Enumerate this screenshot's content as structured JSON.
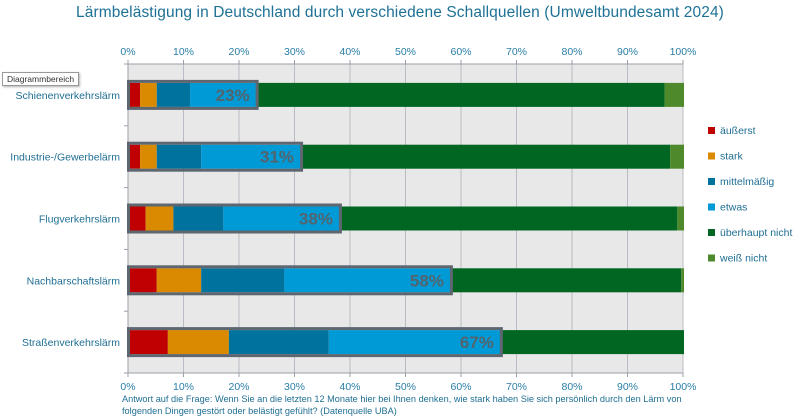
{
  "chart_data": {
    "type": "bar",
    "orientation": "horizontal-stacked-100",
    "title": "Lärmbelästigung in Deutschland durch verschiedene Schallquellen (Umweltbundesamt 2024)",
    "xlabel": "",
    "ylabel": "",
    "xlim": [
      0,
      100
    ],
    "x_ticks": [
      "0%",
      "10%",
      "20%",
      "30%",
      "40%",
      "50%",
      "60%",
      "70%",
      "80%",
      "90%",
      "100%"
    ],
    "grid": true,
    "legend_position": "right",
    "categories": [
      "Schienenverkehrslärm",
      "Industrie-/Gewerbelärm",
      "Flugverkehrslärm",
      "Nachbarschaftslärm",
      "Straßenverkehrslärm"
    ],
    "series": [
      {
        "name": "äußerst",
        "color": "#c00000",
        "values": [
          2,
          2,
          3,
          5,
          7
        ]
      },
      {
        "name": "stark",
        "color": "#d98a00",
        "values": [
          3,
          3,
          5,
          8,
          11
        ]
      },
      {
        "name": "mittelmäßig",
        "color": "#00729e",
        "values": [
          6,
          8,
          9,
          15,
          18
        ]
      },
      {
        "name": "etwas",
        "color": "#009ad6",
        "values": [
          12,
          18,
          21,
          30,
          31
        ]
      },
      {
        "name": "überhaupt nicht",
        "color": "#006622",
        "values": [
          73.5,
          66.5,
          60.8,
          41.5,
          33
        ]
      },
      {
        "name": "weiß nicht",
        "color": "#4e8a2c",
        "values": [
          3.5,
          2.5,
          1.2,
          0.5,
          0
        ]
      }
    ],
    "annotations": [
      {
        "category": "Schienenverkehrslärm",
        "label": "23%",
        "value": 23
      },
      {
        "category": "Industrie-/Gewerbelärm",
        "label": "31%",
        "value": 31
      },
      {
        "category": "Flugverkehrslärm",
        "label": "38%",
        "value": 38
      },
      {
        "category": "Nachbarschaftslärm",
        "label": "58%",
        "value": 58
      },
      {
        "category": "Straßenverkehrslärm",
        "label": "67%",
        "value": 67
      }
    ]
  },
  "tooltip": "Diagrammbereich",
  "footnote": "Antwort auf die Frage: Wenn Sie an die letzten 12 Monate hier bei Ihnen denken, wie stark haben Sie sich persönlich durch den Lärm von folgenden Dingen gestört oder belästigt gefühlt? (Datenquelle UBA)"
}
